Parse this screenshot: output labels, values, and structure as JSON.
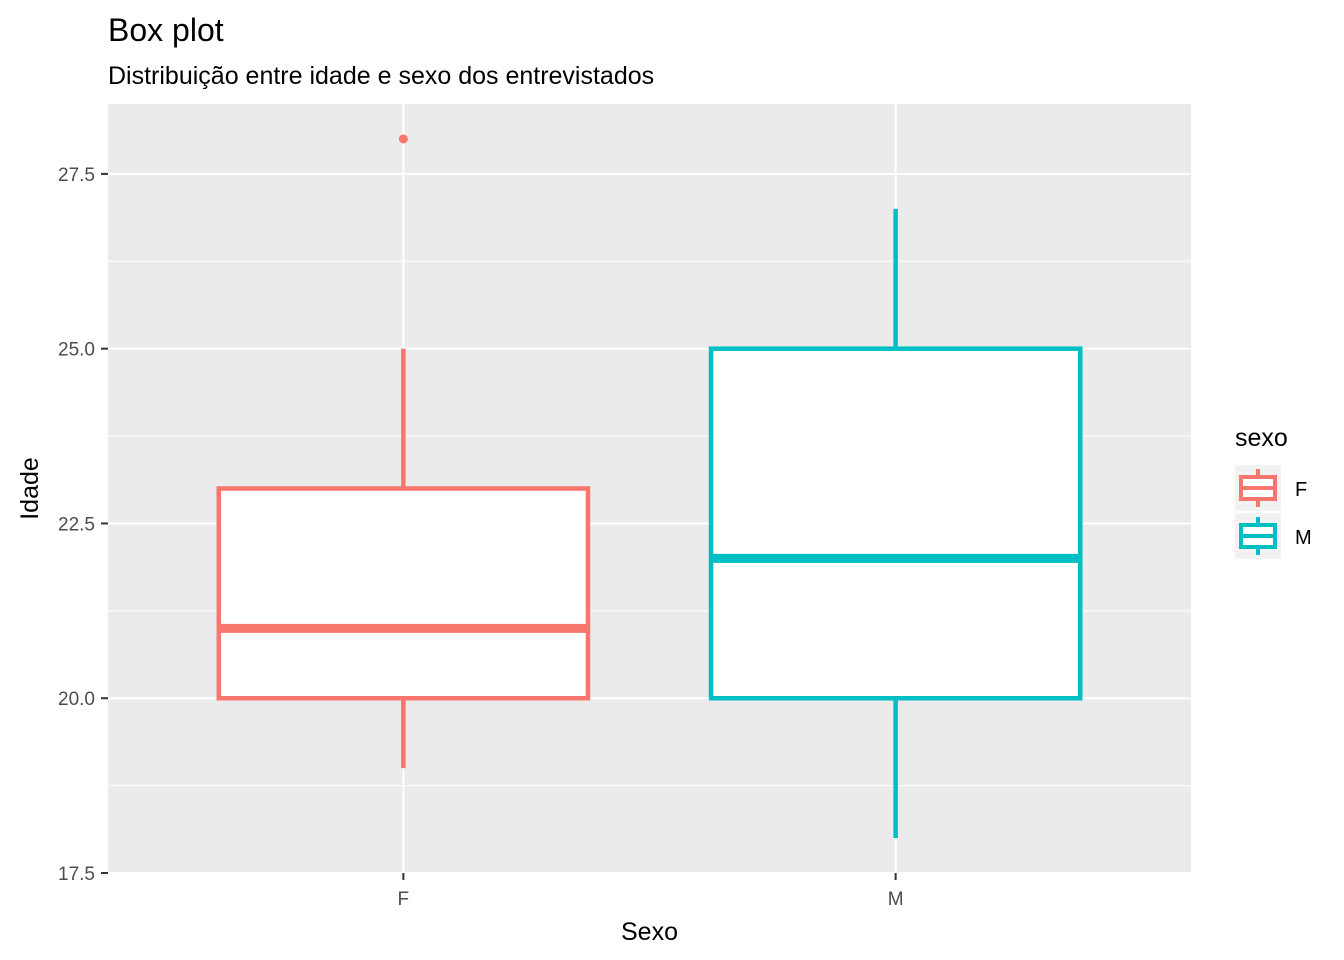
{
  "chart_data": {
    "type": "box",
    "title": "Box plot",
    "subtitle": "Distribuição entre idade e sexo dos entrevistados",
    "xlabel": "Sexo",
    "ylabel": "Idade",
    "ylim": [
      17.5,
      28.5
    ],
    "yticks": [
      17.5,
      20.0,
      22.5,
      25.0,
      27.5
    ],
    "ytick_labels": [
      "17.5",
      "20.0",
      "22.5",
      "25.0",
      "27.5"
    ],
    "categories": [
      "F",
      "M"
    ],
    "grid": true,
    "legend": {
      "title": "sexo",
      "position": "right"
    },
    "series": [
      {
        "name": "F",
        "color": "#F8766D",
        "min": 19,
        "q1": 20,
        "median": 21,
        "q3": 23,
        "max": 25,
        "outliers": [
          28
        ]
      },
      {
        "name": "M",
        "color": "#00BFC4",
        "min": 18,
        "q1": 20,
        "median": 22,
        "q3": 25,
        "max": 27,
        "outliers": []
      }
    ]
  }
}
